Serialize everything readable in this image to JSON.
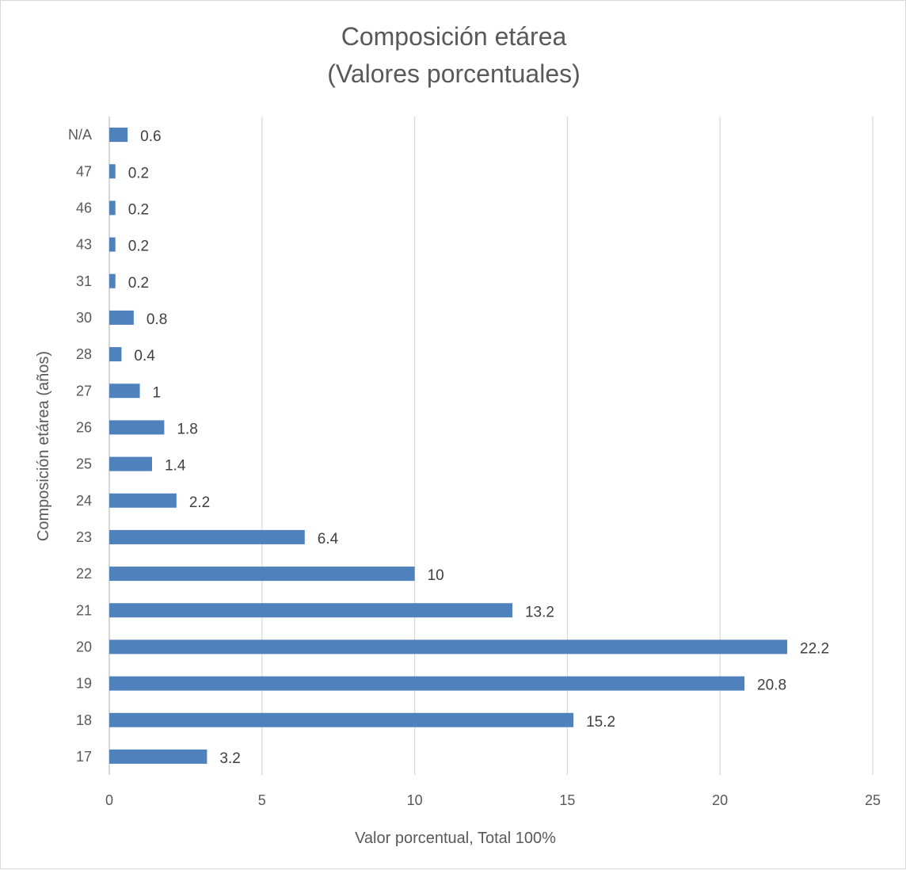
{
  "chart_data": {
    "type": "bar",
    "orientation": "horizontal",
    "title": [
      "Composición etárea",
      "(Valores porcentuales)"
    ],
    "xlabel": "Valor porcentual, Total 100%",
    "ylabel": "Composición etárea (años)",
    "xlim": [
      0,
      25
    ],
    "xticks": [
      "0",
      "5",
      "10",
      "15",
      "20",
      "25"
    ],
    "grid": true,
    "legend": "none",
    "bar_color": "#4f81bd",
    "categories": [
      "17",
      "18",
      "19",
      "20",
      "21",
      "22",
      "23",
      "24",
      "25",
      "26",
      "27",
      "28",
      "30",
      "31",
      "43",
      "46",
      "47",
      "N/A"
    ],
    "values": [
      3.2,
      15.2,
      20.8,
      22.2,
      13.2,
      10,
      6.4,
      2.2,
      1.4,
      1.8,
      1,
      0.4,
      0.8,
      0.2,
      0.2,
      0.2,
      0.2,
      0.6
    ],
    "data_labels": [
      "3.2",
      "15.2",
      "20.8",
      "22.2",
      "13.2",
      "10",
      "6.4",
      "2.2",
      "1.4",
      "1.8",
      "1",
      "0.4",
      "0.8",
      "0.2",
      "0.2",
      "0.2",
      "0.2",
      "0.6"
    ]
  }
}
